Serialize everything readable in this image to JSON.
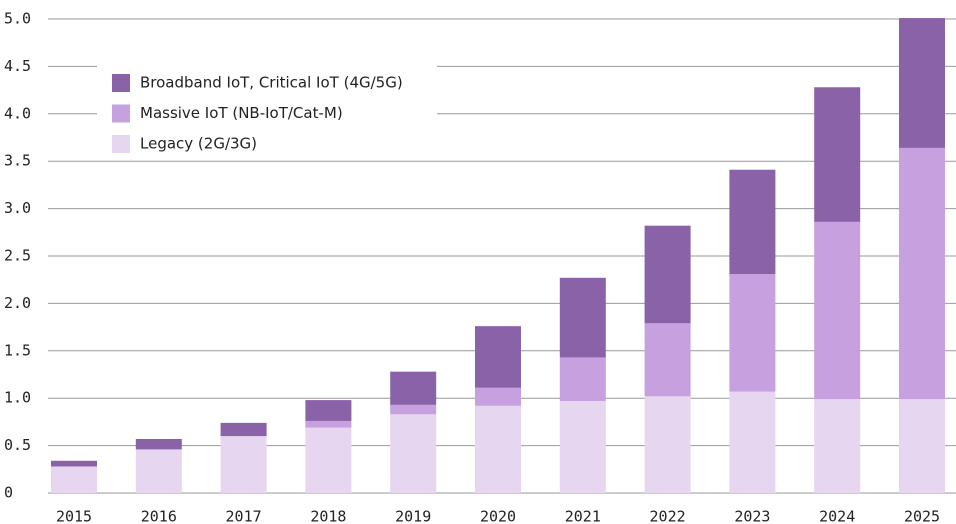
{
  "chart_data": {
    "type": "stacked_bar",
    "categories": [
      "2015",
      "2016",
      "2017",
      "2018",
      "2019",
      "2020",
      "2021",
      "2022",
      "2023",
      "2024",
      "2025"
    ],
    "series": [
      {
        "name": "Legacy (2G/3G)",
        "color": "#e6d6f0",
        "values": [
          0.28,
          0.46,
          0.6,
          0.69,
          0.83,
          0.92,
          0.97,
          1.02,
          1.07,
          0.99,
          0.99
        ]
      },
      {
        "name": "Massive IoT (NB-IoT/Cat-M)",
        "color": "#c6a0df",
        "values": [
          0.0,
          0.0,
          0.0,
          0.07,
          0.1,
          0.19,
          0.46,
          0.77,
          1.24,
          1.87,
          2.65
        ]
      },
      {
        "name": "Broadband IoT, Critical IoT (4G/5G)",
        "color": "#8a62a8",
        "values": [
          0.06,
          0.11,
          0.14,
          0.22,
          0.35,
          0.65,
          0.84,
          1.03,
          1.1,
          1.42,
          1.37
        ]
      }
    ],
    "ylim": [
      0,
      5
    ],
    "yticks": [
      0,
      0.5,
      {
        "value": 1,
        "label": "1.0"
      },
      1.5,
      {
        "value": 2,
        "label": "2.0"
      },
      2.5,
      {
        "value": 3,
        "label": "3.0"
      },
      3.5,
      {
        "value": 4,
        "label": "4.0"
      },
      4.5,
      {
        "value": 5,
        "label": "5.0"
      }
    ],
    "grid": true,
    "legend": "upper left"
  }
}
